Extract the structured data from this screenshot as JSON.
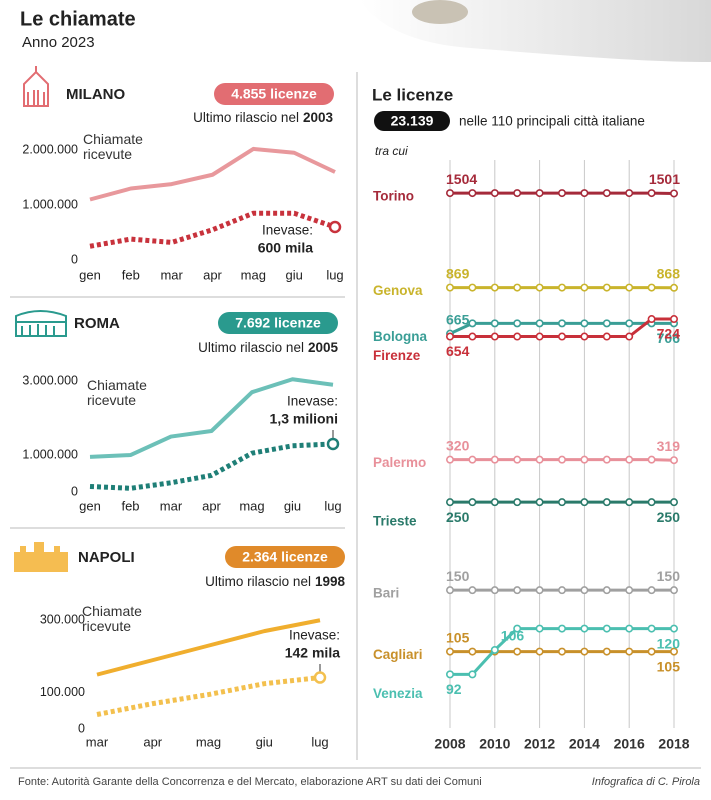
{
  "header": {
    "title": "Le chiamate",
    "subtitle": "Anno 2023"
  },
  "chart_data": [
    {
      "type": "line",
      "city": "MILANO",
      "badge": "4.855 licenze",
      "badge_color": "#e26d72",
      "note": "Ultimo rilascio nel",
      "note_year": "2003",
      "categories": [
        "gen",
        "feb",
        "mar",
        "apr",
        "mag",
        "giu",
        "lug"
      ],
      "series": [
        {
          "name": "Chiamate ricevute",
          "color": "#e8989c",
          "values": [
            1100000,
            1300000,
            1380000,
            1550000,
            2020000,
            1950000,
            1600000
          ]
        },
        {
          "name": "Inevase:",
          "color": "#c8323c",
          "dashed": true,
          "values": [
            250000,
            380000,
            320000,
            550000,
            850000,
            850000,
            600000
          ],
          "value_labels": [
            null,
            null,
            null,
            null,
            null,
            null,
            "600 mila"
          ]
        }
      ],
      "ylim": [
        0,
        2200000
      ],
      "yticks": [
        0,
        {
          "value": 1000000,
          "label": "1.000.000"
        },
        {
          "value": 2000000,
          "label": "2.000.000"
        }
      ]
    },
    {
      "type": "line",
      "city": "ROMA",
      "badge": "7.692 licenze",
      "badge_color": "#2a9a8e",
      "note": "Ultimo rilascio nel",
      "note_year": "2005",
      "categories": [
        "gen",
        "feb",
        "mar",
        "apr",
        "mag",
        "giu",
        "lug"
      ],
      "series": [
        {
          "name": "Chiamate ricevute",
          "color": "#6cc0b8",
          "values": [
            950000,
            1000000,
            1500000,
            1650000,
            2700000,
            3050000,
            2900000
          ]
        },
        {
          "name": "Inevase:",
          "color": "#1f7f77",
          "dashed": true,
          "values": [
            150000,
            100000,
            250000,
            450000,
            1050000,
            1250000,
            1300000
          ],
          "value_labels": [
            null,
            null,
            null,
            null,
            null,
            null,
            "1,3 milioni"
          ]
        }
      ],
      "ylim": [
        0,
        3300000
      ],
      "yticks": [
        0,
        {
          "value": 1000000,
          "label": "1.000.000"
        },
        {
          "value": 3000000,
          "label": "3.000.000"
        }
      ]
    },
    {
      "type": "line",
      "city": "NAPOLI",
      "badge": "2.364 licenze",
      "badge_color": "#e08a2a",
      "note": "Ultimo rilascio nel",
      "note_year": "1998",
      "categories": [
        "mar",
        "apr",
        "mag",
        "giu",
        "lug"
      ],
      "series": [
        {
          "name": "Chiamate ricevute",
          "color": "#f0ae2e",
          "values": [
            150000,
            190000,
            230000,
            270000,
            300000
          ]
        },
        {
          "name": "Inevase:",
          "color": "#f3c04e",
          "dashed": true,
          "values": [
            40000,
            70000,
            95000,
            125000,
            142000
          ],
          "value_labels": [
            null,
            null,
            null,
            null,
            "142 mila"
          ]
        }
      ],
      "ylim": [
        0,
        320000
      ],
      "yticks": [
        0,
        {
          "value": 100000,
          "label": "100.000"
        },
        {
          "value": 300000,
          "label": "300.000"
        }
      ]
    },
    {
      "type": "line",
      "title": "Le licenze",
      "total": "23.139",
      "subtitle": "nelle 110 principali città italiane",
      "note": "tra cui",
      "x": [
        2008,
        2009,
        2010,
        2011,
        2012,
        2013,
        2014,
        2015,
        2016,
        2017,
        2018
      ],
      "xlim": [
        2008,
        2018
      ],
      "xticks": [
        2008,
        2010,
        2012,
        2014,
        2016,
        2018
      ],
      "ylog": true,
      "ylim": [
        85,
        1700
      ],
      "grid": true,
      "series": [
        {
          "name": "Torino",
          "color": "#a52a3a",
          "values": [
            1504,
            1504,
            1504,
            1504,
            1504,
            1504,
            1504,
            1504,
            1504,
            1504,
            1501
          ]
        },
        {
          "name": "Genova",
          "color": "#c9b42c",
          "values": [
            869,
            869,
            869,
            869,
            869,
            869,
            869,
            869,
            869,
            869,
            868
          ]
        },
        {
          "name": "Bologna",
          "color": "#3a9e96",
          "values": [
            665,
            706,
            706,
            706,
            706,
            706,
            706,
            706,
            706,
            706,
            706
          ]
        },
        {
          "name": "Firenze",
          "color": "#c8303a",
          "values": [
            654,
            654,
            654,
            654,
            654,
            654,
            654,
            654,
            654,
            724,
            724
          ]
        },
        {
          "name": "Palermo",
          "color": "#e8909a",
          "values": [
            320,
            320,
            320,
            320,
            320,
            320,
            320,
            320,
            320,
            320,
            319
          ]
        },
        {
          "name": "Trieste",
          "color": "#2a7a6a",
          "values": [
            250,
            250,
            250,
            250,
            250,
            250,
            250,
            250,
            250,
            250,
            250
          ]
        },
        {
          "name": "Bari",
          "color": "#a0a0a0",
          "values": [
            150,
            150,
            150,
            150,
            150,
            150,
            150,
            150,
            150,
            150,
            150
          ]
        },
        {
          "name": "Cagliari",
          "color": "#c8902a",
          "values": [
            105,
            105,
            105,
            105,
            105,
            105,
            105,
            105,
            105,
            105,
            105
          ]
        },
        {
          "name": "Venezia",
          "color": "#4bbfb0",
          "values": [
            92,
            92,
            106,
            120,
            120,
            120,
            120,
            120,
            120,
            120,
            120
          ]
        }
      ]
    }
  ],
  "footer": {
    "source": "Fonte: Autorità Garante della Concorrenza e del Mercato, elaborazione ART su dati dei Comuni",
    "credit": "Infografica di C. Pirola"
  }
}
